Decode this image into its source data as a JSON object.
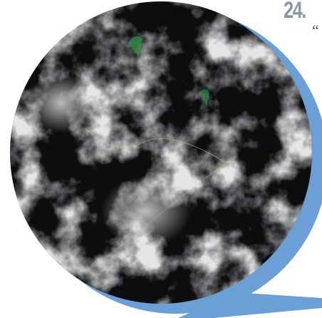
{
  "page": {
    "number": "24.",
    "quote_mark": "“"
  }
}
